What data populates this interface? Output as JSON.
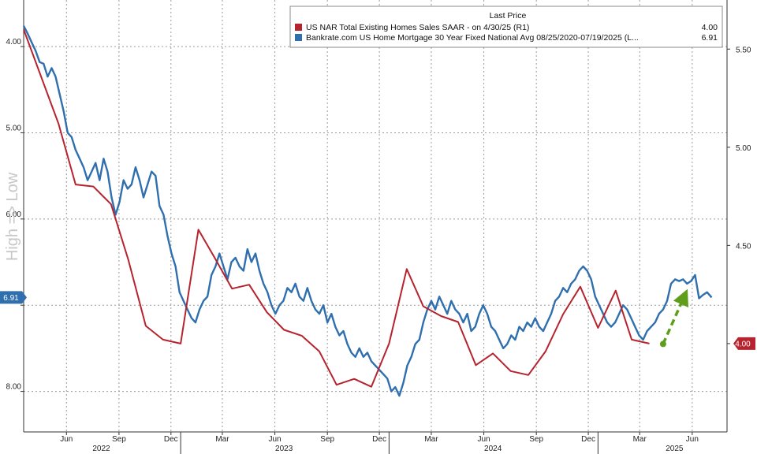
{
  "chart_data": {
    "type": "line",
    "title": "",
    "legend": {
      "header": "Last Price",
      "placement": "top-right",
      "entries": [
        {
          "label": "US NAR Total Existing Homes Sales SAAR -  on 4/30/25  (R1)",
          "last": "4.00",
          "color": "#b5242e"
        },
        {
          "label": "Bankrate.com US Home Mortgage 30 Year Fixed National Avg 08/25/2020-07/19/2025  (L...",
          "last": "6.91",
          "color": "#2f6fae"
        }
      ]
    },
    "left_axis": {
      "ylabel": "High => Low",
      "inverted": true,
      "range": [
        3.46,
        8.47
      ],
      "ticks": [
        "4.00",
        "5.00",
        "6.00",
        "7.00",
        "8.00"
      ],
      "last_value_badge": "6.91"
    },
    "right_axis": {
      "range": [
        3.55,
        5.75
      ],
      "ticks": [
        "5.50",
        "5.00",
        "4.50",
        "4.00"
      ],
      "last_value_badge": "4.00"
    },
    "x_axis": {
      "start": "2022-04-01",
      "end": "2025-08-15",
      "month_ticks": [
        {
          "label": "Jun",
          "date": "2022-06-15"
        },
        {
          "label": "Sep",
          "date": "2022-09-15"
        },
        {
          "label": "Dec",
          "date": "2022-12-15"
        },
        {
          "label": "Mar",
          "date": "2023-03-15"
        },
        {
          "label": "Jun",
          "date": "2023-06-15"
        },
        {
          "label": "Sep",
          "date": "2023-09-15"
        },
        {
          "label": "Dec",
          "date": "2023-12-15"
        },
        {
          "label": "Mar",
          "date": "2024-03-15"
        },
        {
          "label": "Jun",
          "date": "2024-06-15"
        },
        {
          "label": "Sep",
          "date": "2024-09-15"
        },
        {
          "label": "Dec",
          "date": "2024-12-15"
        },
        {
          "label": "Mar",
          "date": "2025-03-15"
        },
        {
          "label": "Jun",
          "date": "2025-06-15"
        }
      ],
      "year_labels": [
        {
          "label": "2022",
          "date": "2022-08-15"
        },
        {
          "label": "2023",
          "date": "2023-07-01"
        },
        {
          "label": "2024",
          "date": "2024-07-01"
        },
        {
          "label": "2025",
          "date": "2025-05-15"
        }
      ],
      "year_separators": [
        "2023-01-01",
        "2024-01-01",
        "2025-01-01"
      ]
    },
    "grid": true,
    "series": [
      {
        "name": "Bankrate.com US Home Mortgage 30 Year Fixed National Avg",
        "axis": "left",
        "color": "#2f6fae",
        "points": [
          [
            "2022-04-01",
            3.76
          ],
          [
            "2022-04-08",
            3.85
          ],
          [
            "2022-04-15",
            3.95
          ],
          [
            "2022-04-22",
            4.05
          ],
          [
            "2022-04-29",
            4.18
          ],
          [
            "2022-05-06",
            4.2
          ],
          [
            "2022-05-13",
            4.35
          ],
          [
            "2022-05-20",
            4.25
          ],
          [
            "2022-05-27",
            4.35
          ],
          [
            "2022-06-03",
            4.55
          ],
          [
            "2022-06-10",
            4.75
          ],
          [
            "2022-06-17",
            5.0
          ],
          [
            "2022-06-24",
            5.05
          ],
          [
            "2022-07-01",
            5.2
          ],
          [
            "2022-07-08",
            5.3
          ],
          [
            "2022-07-15",
            5.4
          ],
          [
            "2022-07-22",
            5.55
          ],
          [
            "2022-07-29",
            5.45
          ],
          [
            "2022-08-05",
            5.35
          ],
          [
            "2022-08-12",
            5.55
          ],
          [
            "2022-08-19",
            5.3
          ],
          [
            "2022-08-26",
            5.45
          ],
          [
            "2022-09-02",
            5.75
          ],
          [
            "2022-09-09",
            5.95
          ],
          [
            "2022-09-16",
            5.8
          ],
          [
            "2022-09-23",
            5.55
          ],
          [
            "2022-09-30",
            5.65
          ],
          [
            "2022-10-07",
            5.6
          ],
          [
            "2022-10-14",
            5.4
          ],
          [
            "2022-10-21",
            5.55
          ],
          [
            "2022-10-28",
            5.75
          ],
          [
            "2022-11-04",
            5.6
          ],
          [
            "2022-11-11",
            5.45
          ],
          [
            "2022-11-18",
            5.5
          ],
          [
            "2022-11-25",
            5.85
          ],
          [
            "2022-12-02",
            5.95
          ],
          [
            "2022-12-09",
            6.2
          ],
          [
            "2022-12-16",
            6.4
          ],
          [
            "2022-12-23",
            6.55
          ],
          [
            "2022-12-30",
            6.85
          ],
          [
            "2023-01-06",
            6.95
          ],
          [
            "2023-01-13",
            7.05
          ],
          [
            "2023-01-20",
            7.15
          ],
          [
            "2023-01-27",
            7.2
          ],
          [
            "2023-02-03",
            7.05
          ],
          [
            "2023-02-10",
            6.95
          ],
          [
            "2023-02-17",
            6.9
          ],
          [
            "2023-02-24",
            6.65
          ],
          [
            "2023-03-03",
            6.55
          ],
          [
            "2023-03-10",
            6.4
          ],
          [
            "2023-03-17",
            6.55
          ],
          [
            "2023-03-24",
            6.7
          ],
          [
            "2023-03-31",
            6.5
          ],
          [
            "2023-04-07",
            6.45
          ],
          [
            "2023-04-14",
            6.55
          ],
          [
            "2023-04-21",
            6.6
          ],
          [
            "2023-04-28",
            6.35
          ],
          [
            "2023-05-05",
            6.5
          ],
          [
            "2023-05-12",
            6.4
          ],
          [
            "2023-05-19",
            6.6
          ],
          [
            "2023-05-26",
            6.75
          ],
          [
            "2023-06-02",
            6.85
          ],
          [
            "2023-06-09",
            7.0
          ],
          [
            "2023-06-16",
            7.1
          ],
          [
            "2023-06-23",
            7.0
          ],
          [
            "2023-06-30",
            6.95
          ],
          [
            "2023-07-07",
            6.8
          ],
          [
            "2023-07-14",
            6.85
          ],
          [
            "2023-07-21",
            6.75
          ],
          [
            "2023-07-28",
            6.9
          ],
          [
            "2023-08-04",
            6.95
          ],
          [
            "2023-08-11",
            6.8
          ],
          [
            "2023-08-18",
            6.95
          ],
          [
            "2023-08-25",
            7.05
          ],
          [
            "2023-09-01",
            7.1
          ],
          [
            "2023-09-08",
            7.0
          ],
          [
            "2023-09-15",
            7.2
          ],
          [
            "2023-09-22",
            7.1
          ],
          [
            "2023-09-29",
            7.25
          ],
          [
            "2023-10-06",
            7.35
          ],
          [
            "2023-10-13",
            7.3
          ],
          [
            "2023-10-20",
            7.45
          ],
          [
            "2023-10-27",
            7.55
          ],
          [
            "2023-11-03",
            7.6
          ],
          [
            "2023-11-10",
            7.5
          ],
          [
            "2023-11-17",
            7.6
          ],
          [
            "2023-11-24",
            7.55
          ],
          [
            "2023-12-01",
            7.65
          ],
          [
            "2023-12-08",
            7.7
          ],
          [
            "2023-12-15",
            7.75
          ],
          [
            "2023-12-22",
            7.8
          ],
          [
            "2023-12-29",
            7.85
          ],
          [
            "2024-01-05",
            8.0
          ],
          [
            "2024-01-12",
            7.95
          ],
          [
            "2024-01-19",
            8.05
          ],
          [
            "2024-01-26",
            7.9
          ],
          [
            "2024-02-02",
            7.7
          ],
          [
            "2024-02-09",
            7.6
          ],
          [
            "2024-02-16",
            7.45
          ],
          [
            "2024-02-23",
            7.4
          ],
          [
            "2024-03-01",
            7.2
          ],
          [
            "2024-03-08",
            7.05
          ],
          [
            "2024-03-15",
            6.95
          ],
          [
            "2024-03-22",
            7.05
          ],
          [
            "2024-03-29",
            6.9
          ],
          [
            "2024-04-05",
            7.0
          ],
          [
            "2024-04-12",
            7.1
          ],
          [
            "2024-04-19",
            6.95
          ],
          [
            "2024-04-26",
            7.05
          ],
          [
            "2024-05-03",
            7.1
          ],
          [
            "2024-05-10",
            7.2
          ],
          [
            "2024-05-17",
            7.1
          ],
          [
            "2024-05-24",
            7.3
          ],
          [
            "2024-05-31",
            7.25
          ],
          [
            "2024-06-07",
            7.1
          ],
          [
            "2024-06-14",
            7.0
          ],
          [
            "2024-06-21",
            7.1
          ],
          [
            "2024-06-28",
            7.25
          ],
          [
            "2024-07-05",
            7.3
          ],
          [
            "2024-07-12",
            7.4
          ],
          [
            "2024-07-19",
            7.5
          ],
          [
            "2024-07-26",
            7.45
          ],
          [
            "2024-08-02",
            7.35
          ],
          [
            "2024-08-09",
            7.4
          ],
          [
            "2024-08-16",
            7.25
          ],
          [
            "2024-08-23",
            7.3
          ],
          [
            "2024-08-30",
            7.2
          ],
          [
            "2024-09-06",
            7.25
          ],
          [
            "2024-09-13",
            7.15
          ],
          [
            "2024-09-20",
            7.25
          ],
          [
            "2024-09-27",
            7.3
          ],
          [
            "2024-10-04",
            7.2
          ],
          [
            "2024-10-11",
            7.1
          ],
          [
            "2024-10-18",
            6.95
          ],
          [
            "2024-10-25",
            6.9
          ],
          [
            "2024-11-01",
            6.8
          ],
          [
            "2024-11-08",
            6.85
          ],
          [
            "2024-11-15",
            6.75
          ],
          [
            "2024-11-22",
            6.7
          ],
          [
            "2024-11-29",
            6.6
          ],
          [
            "2024-12-06",
            6.55
          ],
          [
            "2024-12-13",
            6.6
          ],
          [
            "2024-12-20",
            6.7
          ],
          [
            "2024-12-27",
            6.9
          ],
          [
            "2025-01-03",
            7.0
          ],
          [
            "2025-01-10",
            7.1
          ],
          [
            "2025-01-17",
            7.2
          ],
          [
            "2025-01-24",
            7.25
          ],
          [
            "2025-01-31",
            7.2
          ],
          [
            "2025-02-07",
            7.1
          ],
          [
            "2025-02-14",
            7.0
          ],
          [
            "2025-02-21",
            7.05
          ],
          [
            "2025-02-28",
            7.15
          ],
          [
            "2025-03-07",
            7.25
          ],
          [
            "2025-03-14",
            7.35
          ],
          [
            "2025-03-21",
            7.4
          ],
          [
            "2025-03-28",
            7.3
          ],
          [
            "2025-04-04",
            7.25
          ],
          [
            "2025-04-11",
            7.2
          ],
          [
            "2025-04-18",
            7.1
          ],
          [
            "2025-04-25",
            7.05
          ],
          [
            "2025-05-02",
            6.95
          ],
          [
            "2025-05-09",
            6.75
          ],
          [
            "2025-05-16",
            6.7
          ],
          [
            "2025-05-23",
            6.72
          ],
          [
            "2025-05-30",
            6.7
          ],
          [
            "2025-06-06",
            6.75
          ],
          [
            "2025-06-13",
            6.72
          ],
          [
            "2025-06-20",
            6.65
          ],
          [
            "2025-06-27",
            6.92
          ],
          [
            "2025-07-04",
            6.88
          ],
          [
            "2025-07-11",
            6.85
          ],
          [
            "2025-07-19",
            6.91
          ]
        ]
      },
      {
        "name": "US NAR Total Existing Homes Sales SAAR",
        "axis": "right",
        "color": "#b5242e",
        "points": [
          [
            "2022-04-01",
            5.6
          ],
          [
            "2022-06-01",
            5.12
          ],
          [
            "2022-07-01",
            4.81
          ],
          [
            "2022-08-01",
            4.8
          ],
          [
            "2022-09-01",
            4.71
          ],
          [
            "2022-10-01",
            4.43
          ],
          [
            "2022-11-01",
            4.09
          ],
          [
            "2022-12-01",
            4.02
          ],
          [
            "2023-01-01",
            4.0
          ],
          [
            "2023-02-01",
            4.58
          ],
          [
            "2023-03-01",
            4.44
          ],
          [
            "2023-04-01",
            4.28
          ],
          [
            "2023-05-01",
            4.3
          ],
          [
            "2023-06-01",
            4.16
          ],
          [
            "2023-07-01",
            4.07
          ],
          [
            "2023-08-01",
            4.04
          ],
          [
            "2023-09-01",
            3.96
          ],
          [
            "2023-10-01",
            3.79
          ],
          [
            "2023-11-01",
            3.82
          ],
          [
            "2023-12-01",
            3.78
          ],
          [
            "2024-01-01",
            4.0
          ],
          [
            "2024-02-01",
            4.38
          ],
          [
            "2024-03-01",
            4.19
          ],
          [
            "2024-04-01",
            4.14
          ],
          [
            "2024-05-01",
            4.11
          ],
          [
            "2024-06-01",
            3.89
          ],
          [
            "2024-07-01",
            3.95
          ],
          [
            "2024-08-01",
            3.86
          ],
          [
            "2024-09-01",
            3.84
          ],
          [
            "2024-10-01",
            3.96
          ],
          [
            "2024-11-01",
            4.15
          ],
          [
            "2024-12-01",
            4.29
          ],
          [
            "2025-01-01",
            4.08
          ],
          [
            "2025-02-01",
            4.27
          ],
          [
            "2025-03-01",
            4.02
          ],
          [
            "2025-04-01",
            4.0
          ]
        ]
      }
    ],
    "annotations": [
      {
        "type": "arrow",
        "style": "dashed",
        "color": "#5f9e1a",
        "from": [
          "2025-04-25",
          7.45
        ],
        "to": [
          "2025-06-01",
          6.9
        ],
        "axis": "left"
      }
    ]
  }
}
